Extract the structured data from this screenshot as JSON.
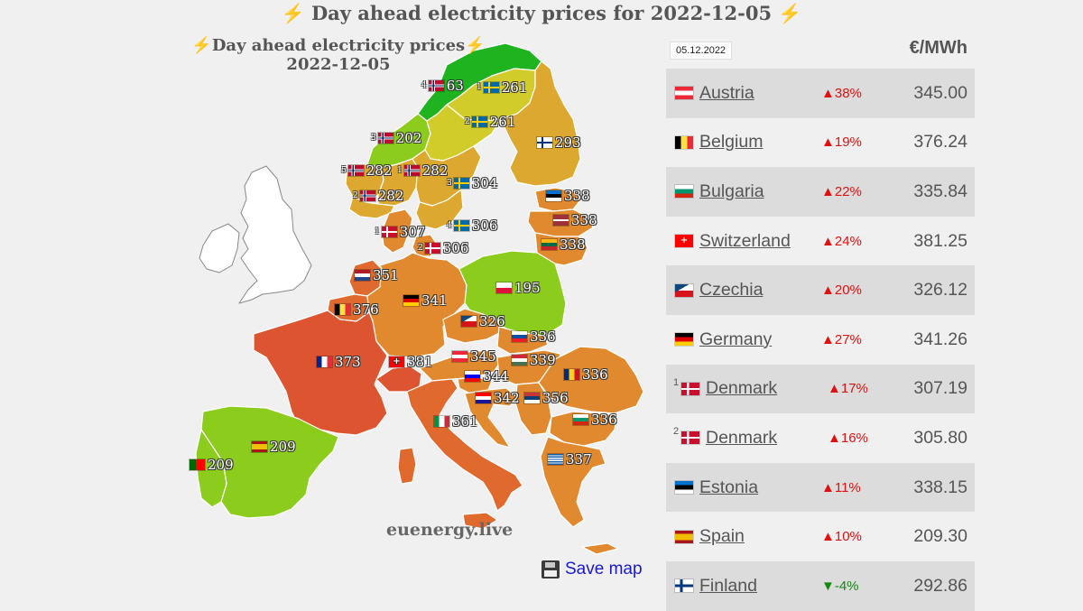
{
  "page_title": "Day ahead electricity prices for 2022-12-05",
  "map": {
    "title_line1": "Day ahead electricity prices",
    "title_line2": "2022-12-05",
    "watermark": "euenergy.live",
    "save_label": "Save map",
    "labels": [
      {
        "id": "no4",
        "sup": "4",
        "flag": "NO",
        "value": "63"
      },
      {
        "id": "se1",
        "sup": "1",
        "flag": "SE",
        "value": "261"
      },
      {
        "id": "se2",
        "sup": "2",
        "flag": "SE",
        "value": "261"
      },
      {
        "id": "fi",
        "sup": "",
        "flag": "FI",
        "value": "293"
      },
      {
        "id": "no3",
        "sup": "3",
        "flag": "NO",
        "value": "202"
      },
      {
        "id": "no5",
        "sup": "5",
        "flag": "NO",
        "value": "282"
      },
      {
        "id": "no1",
        "sup": "1",
        "flag": "NO",
        "value": "282"
      },
      {
        "id": "se3",
        "sup": "3",
        "flag": "SE",
        "value": "304"
      },
      {
        "id": "no2",
        "sup": "2",
        "flag": "NO",
        "value": "282"
      },
      {
        "id": "ee",
        "sup": "",
        "flag": "EE",
        "value": "338"
      },
      {
        "id": "lv",
        "sup": "",
        "flag": "LV",
        "value": "338"
      },
      {
        "id": "lt",
        "sup": "",
        "flag": "LT",
        "value": "338"
      },
      {
        "id": "se4",
        "sup": "4",
        "flag": "SE",
        "value": "306"
      },
      {
        "id": "dk1",
        "sup": "1",
        "flag": "DK",
        "value": "307"
      },
      {
        "id": "dk2",
        "sup": "2",
        "flag": "DK",
        "value": "306"
      },
      {
        "id": "nl",
        "sup": "",
        "flag": "NL",
        "value": "351"
      },
      {
        "id": "pl",
        "sup": "",
        "flag": "PL",
        "value": "195"
      },
      {
        "id": "de",
        "sup": "",
        "flag": "DE",
        "value": "341"
      },
      {
        "id": "be",
        "sup": "",
        "flag": "BE",
        "value": "376"
      },
      {
        "id": "cz",
        "sup": "",
        "flag": "CZ",
        "value": "326"
      },
      {
        "id": "sk",
        "sup": "",
        "flag": "SK",
        "value": "336"
      },
      {
        "id": "fr",
        "sup": "",
        "flag": "FR",
        "value": "373"
      },
      {
        "id": "ch",
        "sup": "",
        "flag": "CH",
        "value": "381"
      },
      {
        "id": "at",
        "sup": "",
        "flag": "AT",
        "value": "345"
      },
      {
        "id": "hu",
        "sup": "",
        "flag": "HU",
        "value": "339"
      },
      {
        "id": "ro",
        "sup": "",
        "flag": "RO",
        "value": "336"
      },
      {
        "id": "si",
        "sup": "",
        "flag": "SI",
        "value": "344"
      },
      {
        "id": "hr",
        "sup": "",
        "flag": "HR",
        "value": "342"
      },
      {
        "id": "rs",
        "sup": "",
        "flag": "RS",
        "value": "356"
      },
      {
        "id": "it",
        "sup": "",
        "flag": "IT",
        "value": "361"
      },
      {
        "id": "bg",
        "sup": "",
        "flag": "BG",
        "value": "336"
      },
      {
        "id": "es",
        "sup": "",
        "flag": "ES",
        "value": "209"
      },
      {
        "id": "pt",
        "sup": "",
        "flag": "PT",
        "value": "209"
      },
      {
        "id": "gr",
        "sup": "",
        "flag": "GR",
        "value": "337"
      }
    ]
  },
  "table": {
    "date": "05.12.2022",
    "unit": "€/MWh",
    "rows": [
      {
        "flag": "AT",
        "sup": "",
        "country": "Austria",
        "change": "▲38%",
        "direction": "up",
        "price": "345.00"
      },
      {
        "flag": "BE",
        "sup": "",
        "country": "Belgium",
        "change": "▲19%",
        "direction": "up",
        "price": "376.24"
      },
      {
        "flag": "BG",
        "sup": "",
        "country": "Bulgaria",
        "change": "▲22%",
        "direction": "up",
        "price": "335.84"
      },
      {
        "flag": "CH",
        "sup": "",
        "country": "Switzerland",
        "change": "▲24%",
        "direction": "up",
        "price": "381.25"
      },
      {
        "flag": "CZ",
        "sup": "",
        "country": "Czechia",
        "change": "▲20%",
        "direction": "up",
        "price": "326.12"
      },
      {
        "flag": "DE",
        "sup": "",
        "country": "Germany",
        "change": "▲27%",
        "direction": "up",
        "price": "341.26"
      },
      {
        "flag": "DK",
        "sup": "1",
        "country": "Denmark",
        "change": "▲17%",
        "direction": "up",
        "price": "307.19"
      },
      {
        "flag": "DK",
        "sup": "2",
        "country": "Denmark",
        "change": "▲16%",
        "direction": "up",
        "price": "305.80"
      },
      {
        "flag": "EE",
        "sup": "",
        "country": "Estonia",
        "change": "▲11%",
        "direction": "up",
        "price": "338.15"
      },
      {
        "flag": "ES",
        "sup": "",
        "country": "Spain",
        "change": "▲10%",
        "direction": "up",
        "price": "209.30"
      },
      {
        "flag": "FI",
        "sup": "",
        "country": "Finland",
        "change": "▼-4%",
        "direction": "down",
        "price": "292.86"
      }
    ]
  },
  "colors": {
    "very_low": "#1fb31f",
    "low": "#8ccc1c",
    "mid_low": "#d2cc2a",
    "mid": "#dda830",
    "mid_high": "#e0892e",
    "high": "#e06a2e",
    "very_high": "#dc5530",
    "non_member": "#ffffff"
  }
}
